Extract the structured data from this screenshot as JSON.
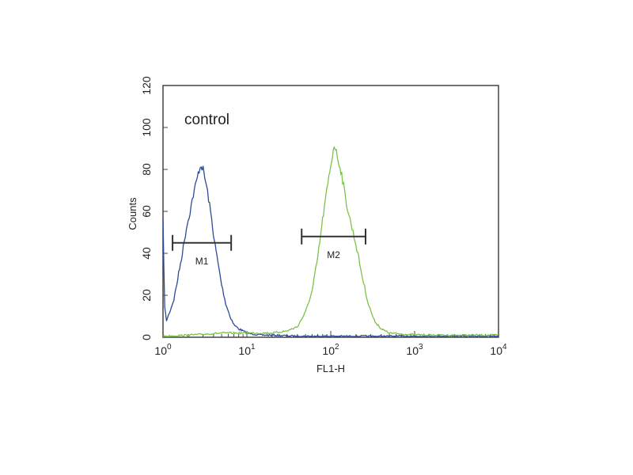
{
  "chart_data": {
    "type": "line",
    "title": "",
    "annotation": "control",
    "xlabel": "FL1-H",
    "ylabel": "Counts",
    "xscale": "log",
    "xlim": [
      1,
      10000
    ],
    "ylim": [
      0,
      120
    ],
    "yticks": [
      0,
      20,
      40,
      60,
      80,
      100,
      120
    ],
    "xticks": [
      {
        "value": 1,
        "base": "10",
        "exp": "0"
      },
      {
        "value": 10,
        "base": "10",
        "exp": "1"
      },
      {
        "value": 100,
        "base": "10",
        "exp": "2"
      },
      {
        "value": 1000,
        "base": "10",
        "exp": "3"
      },
      {
        "value": 10000,
        "base": "10",
        "exp": "4"
      }
    ],
    "grid": false,
    "legend": "none",
    "markers": [
      {
        "label": "M1",
        "x_start": 1.3,
        "x_end": 6.5,
        "y": 45
      },
      {
        "label": "M2",
        "x_start": 45,
        "x_end": 260,
        "y": 48
      }
    ],
    "series": [
      {
        "color": "#2b4a9a",
        "x": [
          1.0,
          1.05,
          1.1,
          1.2,
          1.35,
          1.5,
          1.7,
          1.9,
          2.1,
          2.3,
          2.5,
          2.7,
          2.85,
          3.0,
          3.15,
          3.3,
          3.5,
          3.8,
          4.1,
          4.5,
          5.0,
          5.6,
          6.3,
          7.0,
          8.0,
          9.0,
          10.0,
          12.0,
          15.0,
          20,
          40,
          100,
          300,
          1000,
          3000,
          10000
        ],
        "y": [
          55,
          14,
          8,
          12,
          18,
          28,
          40,
          52,
          60,
          68,
          74,
          80,
          82,
          80,
          76,
          72,
          66,
          56,
          46,
          36,
          25,
          16,
          10,
          6,
          4,
          3,
          2,
          1.5,
          1,
          1,
          0.5,
          0.5,
          0.5,
          0.5,
          0.5,
          0.5
        ]
      },
      {
        "color": "#7cc24a",
        "x": [
          1.0,
          2,
          5,
          10,
          20,
          30,
          40,
          50,
          60,
          70,
          80,
          90,
          100,
          110,
          120,
          135,
          150,
          170,
          190,
          210,
          240,
          280,
          330,
          400,
          500,
          700,
          1000,
          2000,
          5000,
          10000
        ],
        "y": [
          0.5,
          1,
          2,
          2,
          2,
          3,
          5,
          12,
          22,
          38,
          56,
          70,
          82,
          92,
          86,
          78,
          66,
          56,
          48,
          40,
          28,
          16,
          8,
          4,
          2,
          1.5,
          1.2,
          1,
          1,
          1
        ]
      }
    ]
  }
}
